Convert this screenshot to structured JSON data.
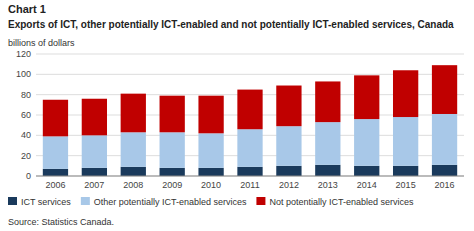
{
  "chart_data": {
    "type": "bar",
    "stacked": true,
    "title": "Chart 1",
    "subtitle": "Exports of ICT, other potentially ICT-enabled and not potentially ICT-enabled services, Canada",
    "y_label": "billions of dollars",
    "source": "Source: Statistics Canada.",
    "categories": [
      "2006",
      "2007",
      "2008",
      "2009",
      "2010",
      "2011",
      "2012",
      "2013",
      "2014",
      "2015",
      "2016"
    ],
    "series": [
      {
        "name": "ICT services",
        "color": "#1a3a5c",
        "values": [
          7,
          8,
          9,
          8,
          8,
          9,
          10,
          11,
          10,
          10,
          11
        ]
      },
      {
        "name": "Other potentially ICT-enabled services",
        "color": "#a8c8e8",
        "values": [
          32,
          32,
          34,
          35,
          34,
          37,
          39,
          42,
          46,
          48,
          50
        ]
      },
      {
        "name": "Not potentially ICT-enabled services",
        "color": "#c00000",
        "values": [
          36,
          36,
          38,
          36,
          37,
          39,
          40,
          40,
          43,
          46,
          48
        ]
      }
    ],
    "ylim": [
      0,
      120
    ],
    "yticks": [
      0,
      20,
      40,
      60,
      80,
      100,
      120
    ],
    "grid": true,
    "legend": "bottom"
  }
}
